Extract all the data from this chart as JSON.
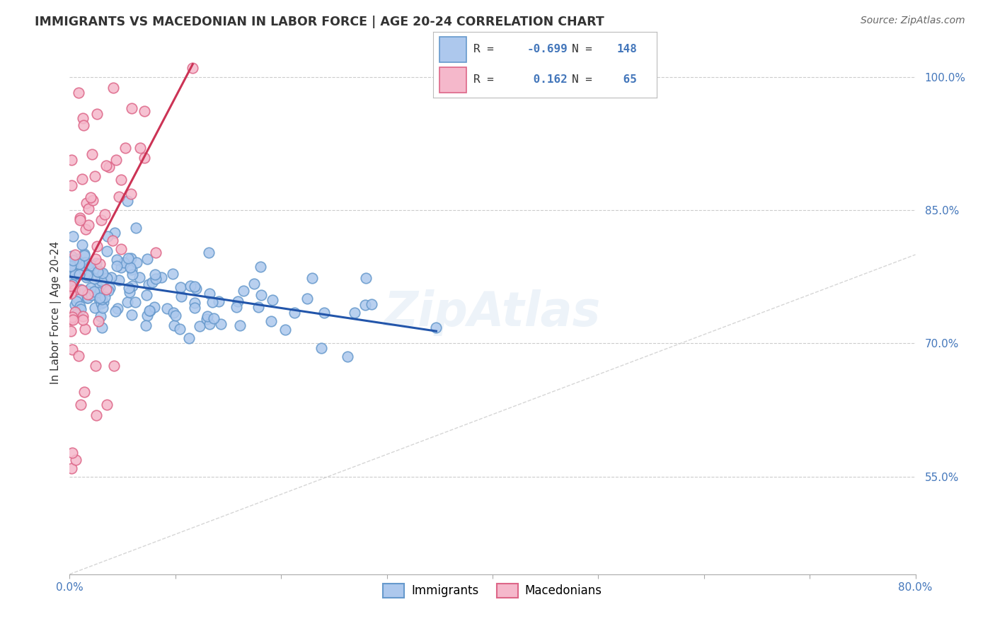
{
  "title": "IMMIGRANTS VS MACEDONIAN IN LABOR FORCE | AGE 20-24 CORRELATION CHART",
  "source": "Source: ZipAtlas.com",
  "ylabel": "In Labor Force | Age 20-24",
  "x_min": 0.0,
  "x_max": 0.8,
  "y_min": 0.44,
  "y_max": 1.03,
  "y_ticks": [
    0.55,
    0.7,
    0.85,
    1.0
  ],
  "y_tick_labels": [
    "55.0%",
    "70.0%",
    "85.0%",
    "100.0%"
  ],
  "immigrants_R": -0.699,
  "immigrants_N": 148,
  "macedonians_R": 0.162,
  "macedonians_N": 65,
  "immigrants_color": "#adc8ed",
  "immigrants_edge_color": "#6699cc",
  "macedonians_color": "#f5b8cb",
  "macedonians_edge_color": "#dd6688",
  "trend_immigrants_color": "#2255aa",
  "trend_macedonians_color": "#cc3355",
  "trend_diagonal_color": "#cccccc",
  "background_color": "#ffffff",
  "grid_color": "#cccccc",
  "legend_border_color": "#bbbbbb",
  "text_color": "#333333",
  "axis_label_color": "#4477bb",
  "watermark_color": "#ccddee"
}
